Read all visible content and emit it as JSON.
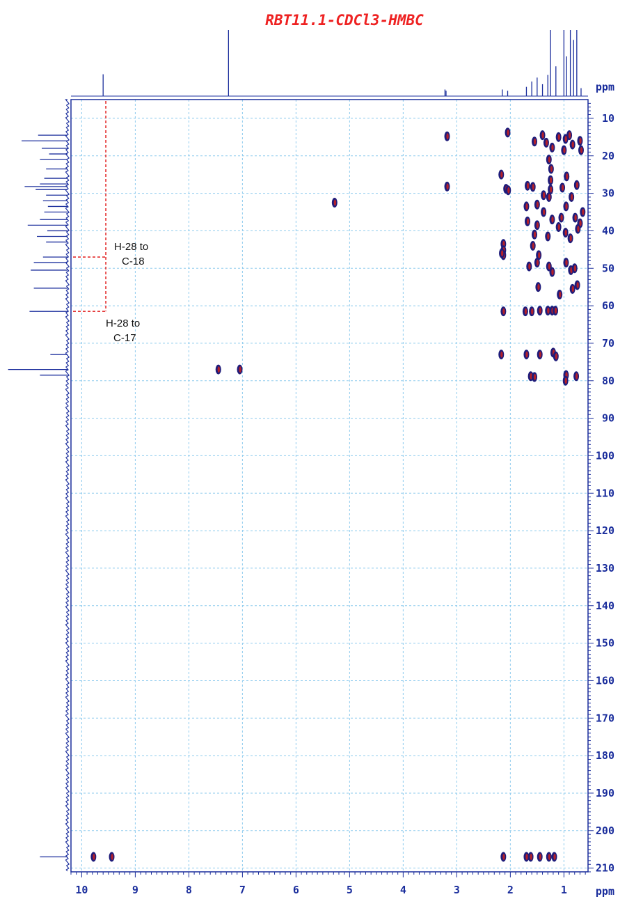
{
  "chart_data": {
    "type": "scatter",
    "title": "RBT11.1-CDCl3-HMBC",
    "x_unit": "ppm",
    "y_unit": "ppm",
    "xlim": [
      10.2,
      0.55
    ],
    "ylim": [
      5,
      211
    ],
    "x_ticks": [
      "10",
      "9",
      "8",
      "7",
      "6",
      "5",
      "4",
      "3",
      "2",
      "1"
    ],
    "y_ticks": [
      "10",
      "20",
      "30",
      "40",
      "50",
      "60",
      "70",
      "80",
      "90",
      "100",
      "110",
      "120",
      "130",
      "140",
      "150",
      "160",
      "170",
      "180",
      "190",
      "200",
      "210"
    ],
    "grid": true,
    "annotations": [
      {
        "lines": [
          "H-28 to",
          "C-18"
        ],
        "x": 9.55,
        "y": 47
      },
      {
        "lines": [
          "H-28 to",
          "C-17"
        ],
        "x": 9.55,
        "y": 61.5
      }
    ],
    "colors": {
      "axis": "#1a2d9c",
      "contour_outer": "#1f1c7a",
      "contour_inner": "#b4202a",
      "grid": "#8ecbee",
      "annotation_line": "#e11b1b",
      "title": "#ee2222"
    },
    "proton_projection": [
      {
        "x": 9.6,
        "h": 0.33
      },
      {
        "x": 7.26,
        "h": 1.0
      },
      {
        "x": 3.22,
        "h": 0.1
      },
      {
        "x": 3.2,
        "h": 0.08
      },
      {
        "x": 2.15,
        "h": 0.1
      },
      {
        "x": 2.05,
        "h": 0.08
      },
      {
        "x": 1.7,
        "h": 0.14
      },
      {
        "x": 1.6,
        "h": 0.22
      },
      {
        "x": 1.5,
        "h": 0.28
      },
      {
        "x": 1.4,
        "h": 0.18
      },
      {
        "x": 1.3,
        "h": 0.32
      },
      {
        "x": 1.25,
        "h": 1.0
      },
      {
        "x": 1.15,
        "h": 0.45
      },
      {
        "x": 1.0,
        "h": 1.0
      },
      {
        "x": 0.95,
        "h": 0.6
      },
      {
        "x": 0.88,
        "h": 1.0
      },
      {
        "x": 0.82,
        "h": 0.85
      },
      {
        "x": 0.76,
        "h": 1.0
      },
      {
        "x": 0.68,
        "h": 0.12
      }
    ],
    "carbon_projection": [
      {
        "y": 14.5,
        "h": 0.48
      },
      {
        "y": 16,
        "h": 0.75
      },
      {
        "y": 18,
        "h": 0.42
      },
      {
        "y": 19.5,
        "h": 0.3
      },
      {
        "y": 21,
        "h": 0.45
      },
      {
        "y": 23.5,
        "h": 0.35
      },
      {
        "y": 26,
        "h": 0.38
      },
      {
        "y": 27.5,
        "h": 0.45
      },
      {
        "y": 28.2,
        "h": 0.7
      },
      {
        "y": 29,
        "h": 0.52
      },
      {
        "y": 30.5,
        "h": 0.35
      },
      {
        "y": 32,
        "h": 0.4
      },
      {
        "y": 33.5,
        "h": 0.32
      },
      {
        "y": 35,
        "h": 0.38
      },
      {
        "y": 37,
        "h": 0.45
      },
      {
        "y": 38.5,
        "h": 0.65
      },
      {
        "y": 40,
        "h": 0.33
      },
      {
        "y": 41.5,
        "h": 0.5
      },
      {
        "y": 43,
        "h": 0.35
      },
      {
        "y": 47,
        "h": 0.4
      },
      {
        "y": 48.5,
        "h": 0.55
      },
      {
        "y": 50.5,
        "h": 0.6
      },
      {
        "y": 55.3,
        "h": 0.55
      },
      {
        "y": 61.5,
        "h": 0.62
      },
      {
        "y": 73,
        "h": 0.28
      },
      {
        "y": 77,
        "h": 0.97
      },
      {
        "y": 78.5,
        "h": 0.45
      },
      {
        "y": 207,
        "h": 0.45
      }
    ],
    "correlations": [
      {
        "x": 3.18,
        "y": 14.8
      },
      {
        "x": 3.18,
        "y": 28.2
      },
      {
        "x": 2.05,
        "y": 13.8
      },
      {
        "x": 2.17,
        "y": 25.0
      },
      {
        "x": 2.08,
        "y": 28.8
      },
      {
        "x": 2.04,
        "y": 29.2
      },
      {
        "x": 2.13,
        "y": 43.5
      },
      {
        "x": 2.13,
        "y": 45.2
      },
      {
        "x": 2.13,
        "y": 46.5
      },
      {
        "x": 2.16,
        "y": 46.0
      },
      {
        "x": 2.13,
        "y": 61.5
      },
      {
        "x": 2.17,
        "y": 73.0
      },
      {
        "x": 1.4,
        "y": 14.5
      },
      {
        "x": 1.33,
        "y": 16.5
      },
      {
        "x": 1.22,
        "y": 17.8
      },
      {
        "x": 1.1,
        "y": 15.0
      },
      {
        "x": 0.97,
        "y": 15.5
      },
      {
        "x": 0.9,
        "y": 14.5
      },
      {
        "x": 0.84,
        "y": 17.0
      },
      {
        "x": 0.7,
        "y": 16.0
      },
      {
        "x": 0.68,
        "y": 18.5
      },
      {
        "x": 1.55,
        "y": 16.2
      },
      {
        "x": 1.0,
        "y": 18.5
      },
      {
        "x": 1.28,
        "y": 21.0
      },
      {
        "x": 1.24,
        "y": 23.5
      },
      {
        "x": 1.25,
        "y": 26.5
      },
      {
        "x": 0.95,
        "y": 25.5
      },
      {
        "x": 0.76,
        "y": 27.8
      },
      {
        "x": 1.03,
        "y": 28.5
      },
      {
        "x": 1.68,
        "y": 28.0
      },
      {
        "x": 1.58,
        "y": 28.3
      },
      {
        "x": 1.25,
        "y": 29.0
      },
      {
        "x": 1.38,
        "y": 30.5
      },
      {
        "x": 1.28,
        "y": 31.0
      },
      {
        "x": 1.7,
        "y": 33.5
      },
      {
        "x": 1.5,
        "y": 33.0
      },
      {
        "x": 1.38,
        "y": 35.0
      },
      {
        "x": 1.22,
        "y": 37.0
      },
      {
        "x": 1.05,
        "y": 36.5
      },
      {
        "x": 0.96,
        "y": 33.5
      },
      {
        "x": 0.86,
        "y": 31.0
      },
      {
        "x": 0.79,
        "y": 36.5
      },
      {
        "x": 0.7,
        "y": 38.0
      },
      {
        "x": 0.65,
        "y": 35.0
      },
      {
        "x": 1.68,
        "y": 37.5
      },
      {
        "x": 1.5,
        "y": 38.5
      },
      {
        "x": 1.1,
        "y": 39.0
      },
      {
        "x": 0.97,
        "y": 40.5
      },
      {
        "x": 0.88,
        "y": 42.0
      },
      {
        "x": 0.74,
        "y": 39.5
      },
      {
        "x": 1.55,
        "y": 41.0
      },
      {
        "x": 1.58,
        "y": 44.0
      },
      {
        "x": 1.3,
        "y": 41.5
      },
      {
        "x": 1.47,
        "y": 46.5
      },
      {
        "x": 1.65,
        "y": 49.5
      },
      {
        "x": 1.5,
        "y": 48.5
      },
      {
        "x": 1.28,
        "y": 49.5
      },
      {
        "x": 1.22,
        "y": 51.0
      },
      {
        "x": 0.96,
        "y": 48.5
      },
      {
        "x": 0.87,
        "y": 50.5
      },
      {
        "x": 0.8,
        "y": 50.0
      },
      {
        "x": 0.75,
        "y": 54.5
      },
      {
        "x": 0.84,
        "y": 55.5
      },
      {
        "x": 1.08,
        "y": 57.0
      },
      {
        "x": 1.48,
        "y": 55.0
      },
      {
        "x": 1.72,
        "y": 61.5
      },
      {
        "x": 1.6,
        "y": 61.5
      },
      {
        "x": 1.45,
        "y": 61.3
      },
      {
        "x": 1.3,
        "y": 61.3
      },
      {
        "x": 1.22,
        "y": 61.3
      },
      {
        "x": 1.16,
        "y": 61.3
      },
      {
        "x": 1.7,
        "y": 73.0
      },
      {
        "x": 1.45,
        "y": 73.0
      },
      {
        "x": 1.2,
        "y": 72.5
      },
      {
        "x": 1.15,
        "y": 73.5
      },
      {
        "x": 1.62,
        "y": 78.8
      },
      {
        "x": 1.55,
        "y": 79.0
      },
      {
        "x": 0.96,
        "y": 78.5
      },
      {
        "x": 0.97,
        "y": 80.0
      },
      {
        "x": 0.77,
        "y": 78.8
      },
      {
        "x": 7.45,
        "y": 77.0
      },
      {
        "x": 7.05,
        "y": 77.0
      },
      {
        "x": 5.28,
        "y": 32.5
      },
      {
        "x": 9.78,
        "y": 207.0
      },
      {
        "x": 9.44,
        "y": 207.0
      },
      {
        "x": 2.13,
        "y": 207.0
      },
      {
        "x": 1.7,
        "y": 207.0
      },
      {
        "x": 1.62,
        "y": 207.0
      },
      {
        "x": 1.45,
        "y": 207.0
      },
      {
        "x": 1.28,
        "y": 207.0
      },
      {
        "x": 1.18,
        "y": 207.0
      }
    ]
  }
}
